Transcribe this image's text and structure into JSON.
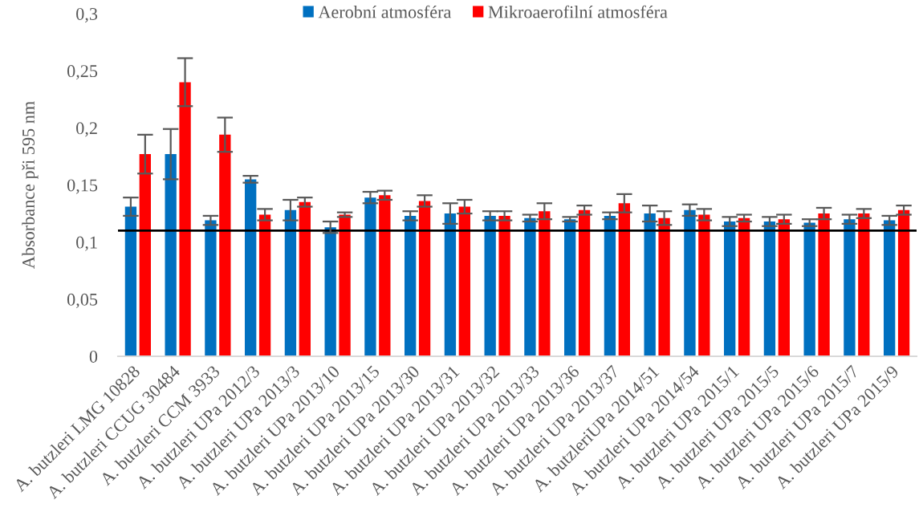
{
  "chart_data": {
    "type": "bar",
    "ylabel": "Absorbance při 595 nm",
    "categories": [
      "A. butzleri LMG 10828",
      "A. butzleri CCUG 30484",
      "A. butzleri CCM 3933",
      "A. butzleri UPa 2012/3",
      "A. butzleri UPa 2013/3",
      "A. butzleri UPa 2013/10",
      "A. butzleri UPa 2013/15",
      "A. butzleri UPa 2013/30",
      "A. butzleri UPa 2013/31",
      "A. butzleri UPa 2013/32",
      "A. butzleri UPa 2013/33",
      "A. butzleri UPa 2013/36",
      "A. butzleri UPa 2013/37",
      "A. butzleriUPa 2014/51",
      "A. butzleri UPa 2014/54",
      "A. butzleri UPa 2015/1",
      "A. butzleri UPa 2015/5",
      "A. butzleri UPa 2015/6",
      "A. butzleri UPa 2015/7",
      "A. butzleri UPa 2015/9"
    ],
    "series": [
      {
        "name": "Aerobní atmosféra",
        "color": "#0070c0",
        "values": [
          0.131,
          0.177,
          0.119,
          0.155,
          0.128,
          0.113,
          0.139,
          0.123,
          0.125,
          0.123,
          0.121,
          0.12,
          0.123,
          0.125,
          0.128,
          0.118,
          0.118,
          0.117,
          0.12,
          0.119
        ],
        "errors": [
          0.008,
          0.022,
          0.004,
          0.003,
          0.009,
          0.005,
          0.005,
          0.004,
          0.009,
          0.004,
          0.003,
          0.002,
          0.003,
          0.007,
          0.005,
          0.004,
          0.004,
          0.003,
          0.004,
          0.004
        ]
      },
      {
        "name": "Mikroaerofilní atmosféra",
        "color": "#ff0000",
        "values": [
          0.177,
          0.24,
          0.194,
          0.124,
          0.135,
          0.124,
          0.141,
          0.136,
          0.131,
          0.123,
          0.127,
          0.128,
          0.134,
          0.121,
          0.124,
          0.121,
          0.12,
          0.125,
          0.125,
          0.128
        ],
        "errors": [
          0.017,
          0.021,
          0.015,
          0.005,
          0.004,
          0.002,
          0.004,
          0.005,
          0.006,
          0.004,
          0.007,
          0.004,
          0.008,
          0.006,
          0.005,
          0.003,
          0.004,
          0.005,
          0.004,
          0.004
        ]
      }
    ],
    "ylim": [
      0,
      0.3
    ],
    "yticks": [
      0,
      {
        "value": 0.05,
        "label": "0,05"
      },
      {
        "value": 0.1,
        "label": "0,1"
      },
      {
        "value": 0.15,
        "label": "0,15"
      },
      {
        "value": 0.2,
        "label": "0,2"
      },
      {
        "value": 0.25,
        "label": "0,25"
      },
      {
        "value": 0.3,
        "label": "0,3"
      }
    ],
    "ref_lines": [
      {
        "axis": "y",
        "value": 0.11,
        "color": "#000000"
      }
    ],
    "legend": "top"
  }
}
